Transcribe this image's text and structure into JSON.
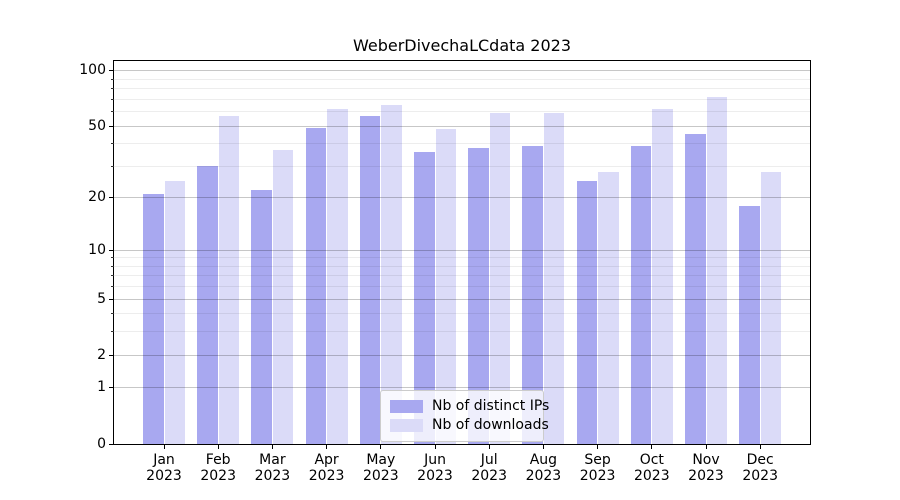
{
  "title": "WeberDivechaLCdata 2023",
  "chart_data": {
    "type": "bar",
    "title": "WeberDivechaLCdata 2023",
    "year": "2023",
    "months": [
      "Jan",
      "Feb",
      "Mar",
      "Apr",
      "May",
      "Jun",
      "Jul",
      "Aug",
      "Sep",
      "Oct",
      "Nov",
      "Dec"
    ],
    "categories": [
      "Jan 2023",
      "Feb 2023",
      "Mar 2023",
      "Apr 2023",
      "May 2023",
      "Jun 2023",
      "Jul 2023",
      "Aug 2023",
      "Sep 2023",
      "Oct 2023",
      "Nov 2023",
      "Dec 2023"
    ],
    "series": [
      {
        "name": "Nb of distinct IPs",
        "color": "#a8a8f0",
        "values": [
          21,
          30,
          22,
          49,
          57,
          36,
          38,
          39,
          25,
          39,
          45,
          18
        ]
      },
      {
        "name": "Nb of downloads",
        "color": "#dbdbf8",
        "values": [
          25,
          57,
          37,
          62,
          65,
          48,
          59,
          59,
          28,
          62,
          72,
          28
        ]
      }
    ],
    "yscale": "log1p",
    "ylim": [
      0,
      112
    ],
    "y_major_ticks": [
      100,
      50,
      20,
      10,
      5,
      2,
      1,
      0
    ],
    "y_minor_ticks": [
      90,
      80,
      70,
      60,
      40,
      30,
      9,
      8,
      7,
      6,
      4,
      3
    ],
    "grid": "both",
    "legend_position": "lower center",
    "colors": {
      "major_grid": "rgba(0,0,0,0.22)",
      "minor_grid": "rgba(0,0,0,0.07)",
      "spine": "#000000"
    }
  }
}
